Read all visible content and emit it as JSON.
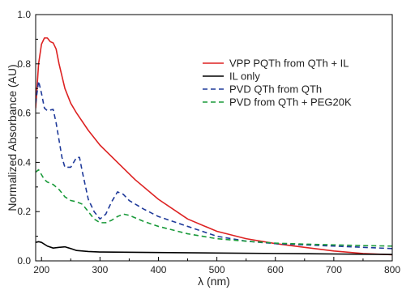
{
  "chart_data": {
    "type": "line",
    "title": "",
    "xlabel": "λ (nm)",
    "ylabel": "Normalized Absorbance (AU)",
    "xlim": [
      190,
      800
    ],
    "ylim": [
      0.0,
      1.0
    ],
    "x_ticks": [
      200,
      300,
      400,
      500,
      600,
      700,
      800
    ],
    "y_ticks": [
      0.0,
      0.2,
      0.4,
      0.6,
      0.8,
      1.0
    ],
    "x_tick_labels": [
      "200",
      "300",
      "400",
      "500",
      "600",
      "700",
      "800"
    ],
    "y_tick_labels": [
      "0.0",
      "0.2",
      "0.4",
      "0.6",
      "0.8",
      "1.0"
    ],
    "grid": false,
    "legend_position": "top-right",
    "series": [
      {
        "name": "VPP PQTh from QTh + IL",
        "color": "#dd2222",
        "dash": "solid",
        "x": [
          190,
          195,
          200,
          205,
          210,
          215,
          220,
          225,
          230,
          240,
          250,
          260,
          280,
          300,
          330,
          360,
          400,
          450,
          500,
          550,
          600,
          650,
          700,
          750,
          800
        ],
        "y": [
          0.62,
          0.8,
          0.88,
          0.905,
          0.905,
          0.89,
          0.885,
          0.86,
          0.8,
          0.7,
          0.64,
          0.6,
          0.53,
          0.47,
          0.4,
          0.33,
          0.25,
          0.17,
          0.12,
          0.09,
          0.07,
          0.055,
          0.04,
          0.03,
          0.025
        ]
      },
      {
        "name": "IL only",
        "color": "#000000",
        "dash": "solid",
        "x": [
          190,
          195,
          200,
          210,
          220,
          230,
          240,
          250,
          260,
          280,
          300,
          400,
          500,
          600,
          700,
          800
        ],
        "y": [
          0.075,
          0.078,
          0.075,
          0.06,
          0.052,
          0.055,
          0.057,
          0.05,
          0.042,
          0.038,
          0.036,
          0.034,
          0.032,
          0.03,
          0.028,
          0.026
        ]
      },
      {
        "name": "PVD QTh from QTh",
        "color": "#1f3a9a",
        "dash": "dashed",
        "x": [
          190,
          195,
          200,
          205,
          210,
          220,
          225,
          235,
          240,
          250,
          260,
          265,
          270,
          280,
          290,
          300,
          310,
          320,
          330,
          340,
          350,
          375,
          400,
          450,
          500,
          550,
          600,
          650,
          700,
          750,
          800
        ],
        "y": [
          0.64,
          0.73,
          0.68,
          0.62,
          0.61,
          0.615,
          0.56,
          0.42,
          0.38,
          0.38,
          0.42,
          0.42,
          0.36,
          0.25,
          0.2,
          0.17,
          0.19,
          0.24,
          0.28,
          0.27,
          0.245,
          0.21,
          0.18,
          0.14,
          0.1,
          0.08,
          0.07,
          0.065,
          0.06,
          0.055,
          0.05
        ]
      },
      {
        "name": "PVD from QTh + PEG20K",
        "color": "#1a9a3a",
        "dash": "dashed",
        "x": [
          190,
          195,
          200,
          205,
          210,
          220,
          230,
          240,
          250,
          260,
          270,
          280,
          290,
          300,
          310,
          320,
          330,
          340,
          350,
          375,
          400,
          450,
          500,
          550,
          600,
          650,
          700,
          750,
          800
        ],
        "y": [
          0.36,
          0.37,
          0.35,
          0.33,
          0.32,
          0.31,
          0.29,
          0.26,
          0.245,
          0.24,
          0.23,
          0.2,
          0.17,
          0.155,
          0.155,
          0.165,
          0.18,
          0.19,
          0.185,
          0.16,
          0.14,
          0.11,
          0.09,
          0.08,
          0.072,
          0.068,
          0.065,
          0.062,
          0.06
        ]
      }
    ]
  }
}
